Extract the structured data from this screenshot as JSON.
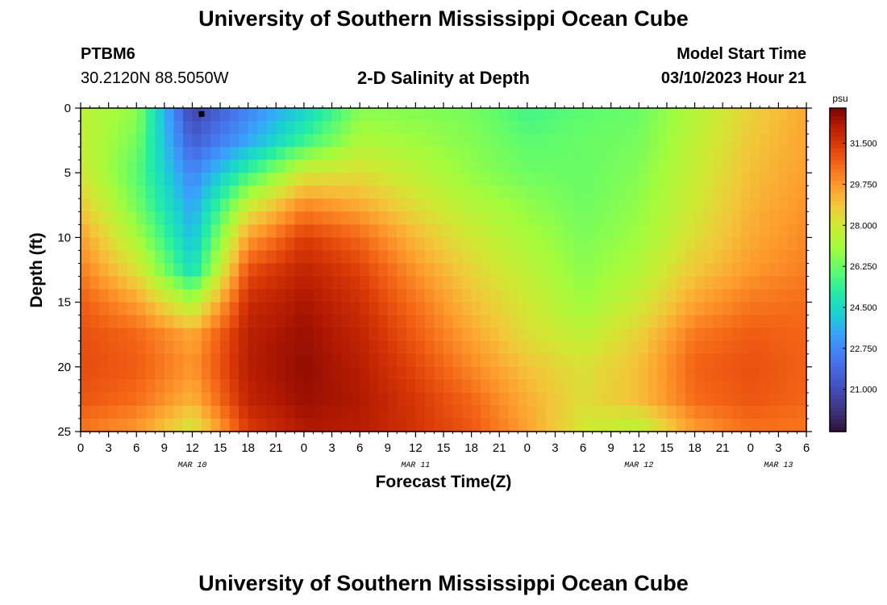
{
  "header": {
    "title": "University of Southern Mississippi Ocean Cube",
    "station_id": "PTBM6",
    "station_coords": "30.2120N  88.5050W",
    "subtitle": "2-D Salinity at Depth",
    "model_start_label": "Model Start Time",
    "model_start_value": "03/10/2023 Hour 21"
  },
  "footer": {
    "title": "University of Southern Mississippi Ocean Cube"
  },
  "chart_data": {
    "type": "heatmap",
    "title": "2-D Salinity at Depth",
    "xlabel": "Forecast Time(Z)",
    "ylabel": "Depth (ft)",
    "xlim": [
      0,
      78
    ],
    "ylim": [
      0,
      25
    ],
    "x_tick_labels": [
      "0",
      "3",
      "6",
      "9",
      "12",
      "15",
      "18",
      "21",
      "0",
      "3",
      "6",
      "9",
      "12",
      "15",
      "18",
      "21",
      "0",
      "3",
      "6",
      "9",
      "12",
      "15",
      "18",
      "21",
      "0",
      "3",
      "6"
    ],
    "y_tick_labels": [
      "0",
      "5",
      "10",
      "15",
      "20",
      "25"
    ],
    "date_labels": [
      {
        "hour": 12,
        "label": "MAR 10"
      },
      {
        "hour": 36,
        "label": "MAR 11"
      },
      {
        "hour": 60,
        "label": "MAR 12"
      },
      {
        "hour": 75,
        "label": "MAR 13"
      }
    ],
    "marker": {
      "hour": 13,
      "depth": 0.3
    },
    "colorbar": {
      "unit": "psu",
      "min": 19.2,
      "max": 33.0,
      "tick_labels": [
        "31.500",
        "29.750",
        "28.000",
        "26.250",
        "24.500",
        "22.750",
        "21.000"
      ],
      "tick_values": [
        31.5,
        29.75,
        28.0,
        26.25,
        24.5,
        22.75,
        21.0
      ]
    },
    "times_hours": [
      0,
      6,
      12,
      18,
      24,
      30,
      36,
      42,
      48,
      54,
      60,
      66,
      72,
      78
    ],
    "depths_ft": [
      0,
      2.5,
      5,
      7.5,
      10,
      12.5,
      15,
      17.5,
      20,
      22.5,
      25
    ],
    "salinity_psu": [
      [
        27.6,
        26.8,
        20.6,
        22.6,
        24.2,
        26.6,
        26.6,
        26.4,
        25.6,
        26.0,
        26.2,
        27.4,
        28.6,
        29.4
      ],
      [
        27.7,
        26.4,
        21.5,
        23.4,
        25.5,
        27.3,
        27.0,
        26.6,
        26.0,
        26.2,
        26.4,
        27.6,
        28.8,
        29.5
      ],
      [
        28.0,
        26.0,
        22.6,
        25.5,
        28.0,
        28.3,
        27.6,
        26.8,
        26.3,
        26.2,
        26.6,
        27.8,
        29.0,
        29.6
      ],
      [
        28.8,
        26.4,
        23.3,
        27.8,
        30.0,
        29.4,
        28.3,
        27.4,
        26.8,
        26.3,
        26.8,
        28.0,
        29.2,
        29.8
      ],
      [
        29.6,
        27.2,
        23.8,
        29.6,
        31.4,
        30.6,
        29.1,
        28.0,
        27.2,
        26.5,
        27.0,
        28.3,
        29.4,
        30.0
      ],
      [
        30.2,
        28.2,
        24.6,
        31.0,
        32.0,
        31.3,
        29.8,
        28.5,
        27.6,
        26.7,
        27.4,
        28.8,
        29.7,
        30.2
      ],
      [
        30.8,
        29.6,
        27.2,
        31.8,
        32.4,
        31.7,
        30.4,
        29.0,
        28.0,
        27.0,
        27.9,
        29.5,
        30.3,
        30.5
      ],
      [
        31.0,
        30.6,
        29.4,
        32.1,
        32.6,
        32.0,
        30.8,
        29.5,
        28.3,
        27.6,
        28.6,
        30.3,
        30.8,
        30.6
      ],
      [
        31.1,
        30.8,
        29.8,
        32.2,
        32.7,
        32.2,
        31.2,
        30.0,
        28.9,
        28.2,
        29.0,
        30.7,
        31.0,
        30.7
      ],
      [
        30.9,
        30.5,
        29.2,
        32.0,
        32.6,
        32.3,
        31.5,
        30.6,
        29.3,
        28.3,
        29.0,
        30.5,
        30.9,
        30.6
      ],
      [
        30.3,
        29.7,
        27.9,
        31.4,
        32.3,
        32.2,
        31.6,
        30.9,
        29.6,
        28.0,
        27.4,
        29.6,
        30.4,
        30.3
      ]
    ]
  }
}
